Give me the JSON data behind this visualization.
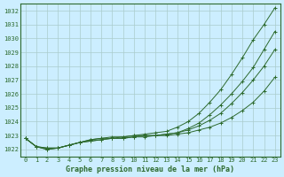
{
  "title": "Graphe pression niveau de la mer (hPa)",
  "background_color": "#cceeff",
  "grid_color": "#aacccc",
  "line_color": "#2d6a2d",
  "xlim": [
    -0.5,
    23.5
  ],
  "ylim": [
    1021.5,
    1032.5
  ],
  "yticks": [
    1022,
    1023,
    1024,
    1025,
    1026,
    1027,
    1028,
    1029,
    1030,
    1031,
    1032
  ],
  "xticks": [
    0,
    1,
    2,
    3,
    4,
    5,
    6,
    7,
    8,
    9,
    10,
    11,
    12,
    13,
    14,
    15,
    16,
    17,
    18,
    19,
    20,
    21,
    22,
    23
  ],
  "series1": [
    1022.8,
    1022.2,
    1022.1,
    1022.1,
    1022.3,
    1022.5,
    1022.6,
    1022.7,
    1022.8,
    1022.8,
    1022.9,
    1022.9,
    1023.0,
    1023.0,
    1023.1,
    1023.2,
    1023.4,
    1023.6,
    1023.9,
    1024.3,
    1024.8,
    1025.4,
    1026.2,
    1027.2
  ],
  "series2": [
    1022.8,
    1022.2,
    1022.1,
    1022.1,
    1022.3,
    1022.5,
    1022.6,
    1022.7,
    1022.8,
    1022.8,
    1022.9,
    1023.0,
    1023.0,
    1023.1,
    1023.2,
    1023.4,
    1023.7,
    1024.1,
    1024.6,
    1025.3,
    1026.1,
    1027.0,
    1028.0,
    1029.2
  ],
  "series3": [
    1022.8,
    1022.2,
    1022.0,
    1022.1,
    1022.3,
    1022.5,
    1022.7,
    1022.8,
    1022.8,
    1022.9,
    1023.0,
    1023.0,
    1023.0,
    1023.1,
    1023.2,
    1023.5,
    1023.9,
    1024.5,
    1025.2,
    1026.0,
    1026.9,
    1027.9,
    1029.2,
    1030.5
  ],
  "series4": [
    1022.8,
    1022.2,
    1022.0,
    1022.1,
    1022.3,
    1022.5,
    1022.7,
    1022.8,
    1022.9,
    1022.9,
    1023.0,
    1023.1,
    1023.2,
    1023.3,
    1023.6,
    1024.0,
    1024.6,
    1025.4,
    1026.3,
    1027.4,
    1028.6,
    1029.9,
    1031.0,
    1032.2
  ]
}
